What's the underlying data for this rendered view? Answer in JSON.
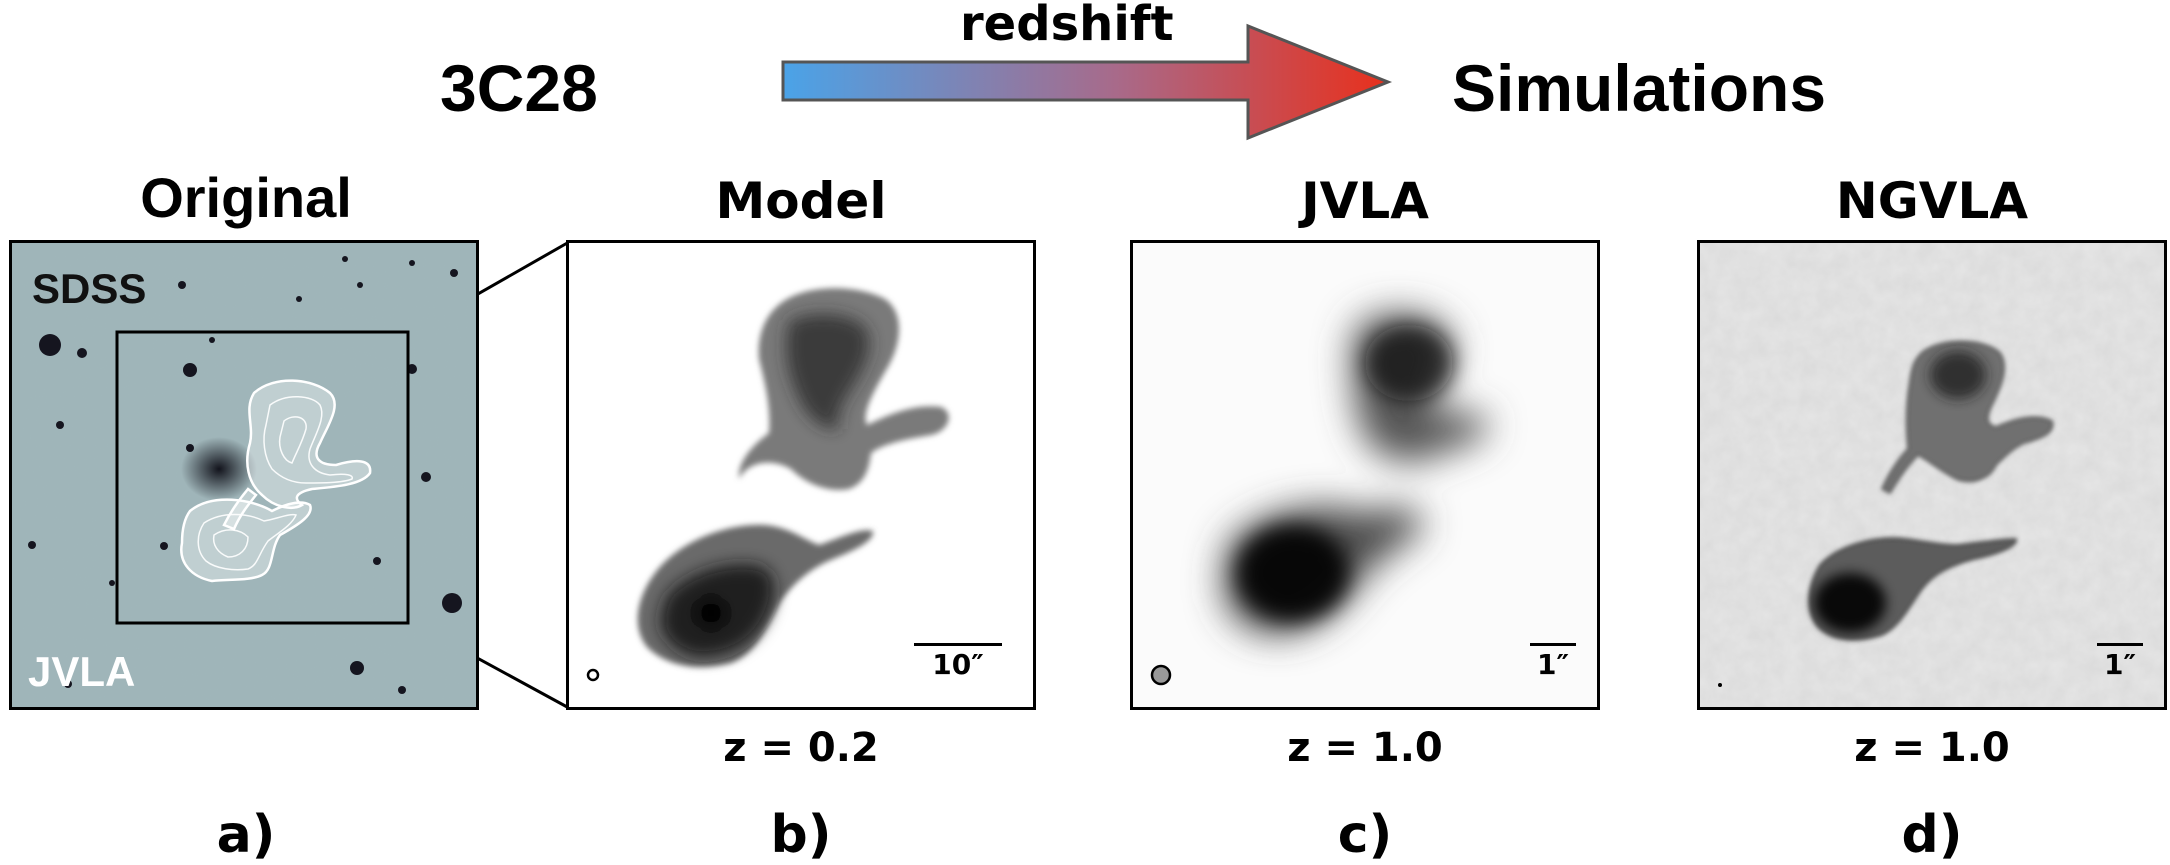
{
  "header": {
    "left_title": "3C28",
    "right_title": "Simulations",
    "arrow_label": "redshift"
  },
  "panels": [
    {
      "id": "a",
      "title": "Original",
      "label": "a)",
      "overlay_labels": [
        "SDSS",
        "JVLA"
      ]
    },
    {
      "id": "b",
      "title": "Model",
      "label": "b)",
      "redshift": "z = 0.2",
      "scale": "10″"
    },
    {
      "id": "c",
      "title": "JVLA",
      "label": "c)",
      "redshift": "z = 1.0",
      "scale": "1″"
    },
    {
      "id": "d",
      "title": "NGVLA",
      "label": "d)",
      "redshift": "z = 1.0",
      "scale": "1″"
    }
  ],
  "colors": {
    "arrow_start": "#4aa3e8",
    "arrow_end": "#e8301c",
    "sdss_background": "#9bb2b6",
    "ngvla_background": "#e4e4e4"
  }
}
